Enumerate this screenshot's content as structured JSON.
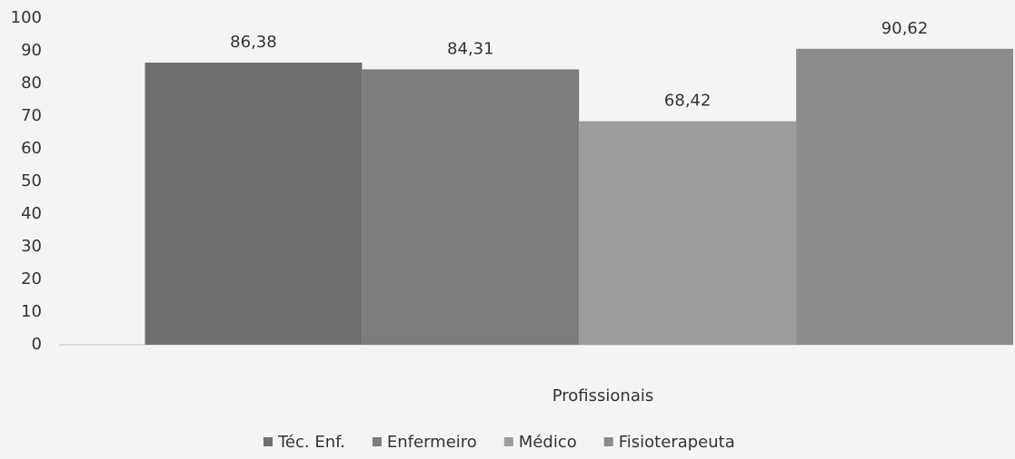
{
  "chart_data": {
    "type": "bar",
    "categories": [
      "Profissionais"
    ],
    "series": [
      {
        "name": "Téc. Enf.",
        "color": "#6f6f6f",
        "values": [
          86.38
        ],
        "value_labels": [
          "86,38"
        ]
      },
      {
        "name": "Enfermeiro",
        "color": "#7d7d7d",
        "values": [
          84.31
        ],
        "value_labels": [
          "84,31"
        ]
      },
      {
        "name": "Médico",
        "color": "#9c9c9c",
        "values": [
          68.42
        ],
        "value_labels": [
          "68,42"
        ]
      },
      {
        "name": "Fisioterapeuta",
        "color": "#8b8b8b",
        "values": [
          90.62
        ],
        "value_labels": [
          "90,62"
        ]
      }
    ],
    "ylim": [
      0,
      100
    ],
    "yticks": [
      0,
      10,
      20,
      30,
      40,
      50,
      60,
      70,
      80,
      90,
      100
    ],
    "grid": false,
    "legend": "bottom"
  }
}
